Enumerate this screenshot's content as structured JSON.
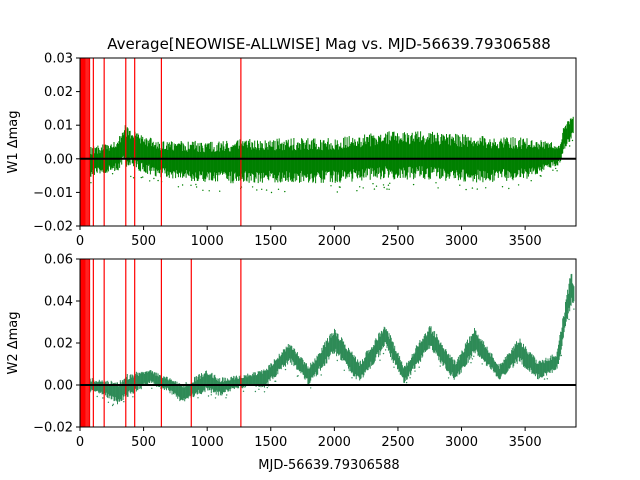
{
  "chart_data": [
    {
      "type": "scatter",
      "title": "Average[NEOWISE-ALLWISE] Mag vs. MJD-56639.79306588",
      "ylabel": "W1 Δmag",
      "xlabel": "",
      "xlim": [
        0,
        3900
      ],
      "ylim": [
        -0.02,
        0.03
      ],
      "xticks": [
        0,
        500,
        1000,
        1500,
        2000,
        2500,
        3000,
        3500
      ],
      "yticks": [
        -0.02,
        -0.01,
        0.0,
        0.01,
        0.02,
        0.03
      ],
      "ytick_labels": [
        "−0.02",
        "−0.01",
        "0.00",
        "0.01",
        "0.02",
        "0.03"
      ],
      "color": "#008000",
      "reference_line": 0,
      "vlines": [
        5,
        12,
        20,
        28,
        36,
        45,
        55,
        65,
        75,
        105,
        190,
        360,
        430,
        640,
        1265
      ],
      "vline_color": "#ff0000",
      "envelope": [
        {
          "x": 80,
          "lo": -0.006,
          "hi": 0.004
        },
        {
          "x": 300,
          "lo": -0.004,
          "hi": 0.006
        },
        {
          "x": 340,
          "lo": -0.003,
          "hi": 0.011
        },
        {
          "x": 600,
          "lo": -0.006,
          "hi": 0.006
        },
        {
          "x": 1000,
          "lo": -0.008,
          "hi": 0.006
        },
        {
          "x": 1500,
          "lo": -0.008,
          "hi": 0.007
        },
        {
          "x": 2000,
          "lo": -0.008,
          "hi": 0.007
        },
        {
          "x": 2400,
          "lo": -0.007,
          "hi": 0.009
        },
        {
          "x": 2750,
          "lo": -0.007,
          "hi": 0.009
        },
        {
          "x": 3100,
          "lo": -0.008,
          "hi": 0.008
        },
        {
          "x": 3500,
          "lo": -0.007,
          "hi": 0.007
        },
        {
          "x": 3780,
          "lo": -0.002,
          "hi": 0.005
        },
        {
          "x": 3800,
          "lo": 0.002,
          "hi": 0.01
        },
        {
          "x": 3880,
          "lo": 0.006,
          "hi": 0.014
        }
      ]
    },
    {
      "type": "scatter",
      "title": "",
      "ylabel": "W2 Δmag",
      "xlabel": "MJD-56639.79306588",
      "xlim": [
        0,
        3900
      ],
      "ylim": [
        -0.02,
        0.06
      ],
      "xticks": [
        0,
        500,
        1000,
        1500,
        2000,
        2500,
        3000,
        3500
      ],
      "yticks": [
        -0.02,
        0.0,
        0.02,
        0.04,
        0.06
      ],
      "ytick_labels": [
        "−0.02",
        "0.00",
        "0.02",
        "0.04",
        "0.06"
      ],
      "color": "#2e8b57",
      "reference_line": 0,
      "vlines": [
        5,
        12,
        20,
        28,
        36,
        45,
        55,
        65,
        75,
        105,
        190,
        360,
        430,
        640,
        875,
        1265
      ],
      "vline_color": "#ff0000",
      "envelope": [
        {
          "x": 80,
          "lo": -0.004,
          "hi": 0.004
        },
        {
          "x": 200,
          "lo": -0.006,
          "hi": 0.003
        },
        {
          "x": 300,
          "lo": -0.01,
          "hi": 0.002
        },
        {
          "x": 360,
          "lo": -0.007,
          "hi": 0.006
        },
        {
          "x": 550,
          "lo": 0.0,
          "hi": 0.008
        },
        {
          "x": 700,
          "lo": -0.004,
          "hi": 0.004
        },
        {
          "x": 800,
          "lo": -0.009,
          "hi": 0.001
        },
        {
          "x": 1000,
          "lo": -0.004,
          "hi": 0.008
        },
        {
          "x": 1100,
          "lo": -0.006,
          "hi": 0.004
        },
        {
          "x": 1250,
          "lo": -0.002,
          "hi": 0.005
        },
        {
          "x": 1450,
          "lo": -0.002,
          "hi": 0.008
        },
        {
          "x": 1650,
          "lo": 0.01,
          "hi": 0.021
        },
        {
          "x": 1800,
          "lo": -0.001,
          "hi": 0.01
        },
        {
          "x": 2000,
          "lo": 0.014,
          "hi": 0.028
        },
        {
          "x": 2200,
          "lo": 0.0,
          "hi": 0.012
        },
        {
          "x": 2400,
          "lo": 0.017,
          "hi": 0.03
        },
        {
          "x": 2550,
          "lo": 0.0,
          "hi": 0.01
        },
        {
          "x": 2750,
          "lo": 0.016,
          "hi": 0.03
        },
        {
          "x": 2950,
          "lo": 0.001,
          "hi": 0.012
        },
        {
          "x": 3100,
          "lo": 0.014,
          "hi": 0.028
        },
        {
          "x": 3300,
          "lo": 0.002,
          "hi": 0.01
        },
        {
          "x": 3450,
          "lo": 0.01,
          "hi": 0.024
        },
        {
          "x": 3600,
          "lo": 0.002,
          "hi": 0.012
        },
        {
          "x": 3750,
          "lo": 0.006,
          "hi": 0.016
        },
        {
          "x": 3860,
          "lo": 0.036,
          "hi": 0.056
        },
        {
          "x": 3885,
          "lo": 0.038,
          "hi": 0.05
        }
      ]
    }
  ]
}
